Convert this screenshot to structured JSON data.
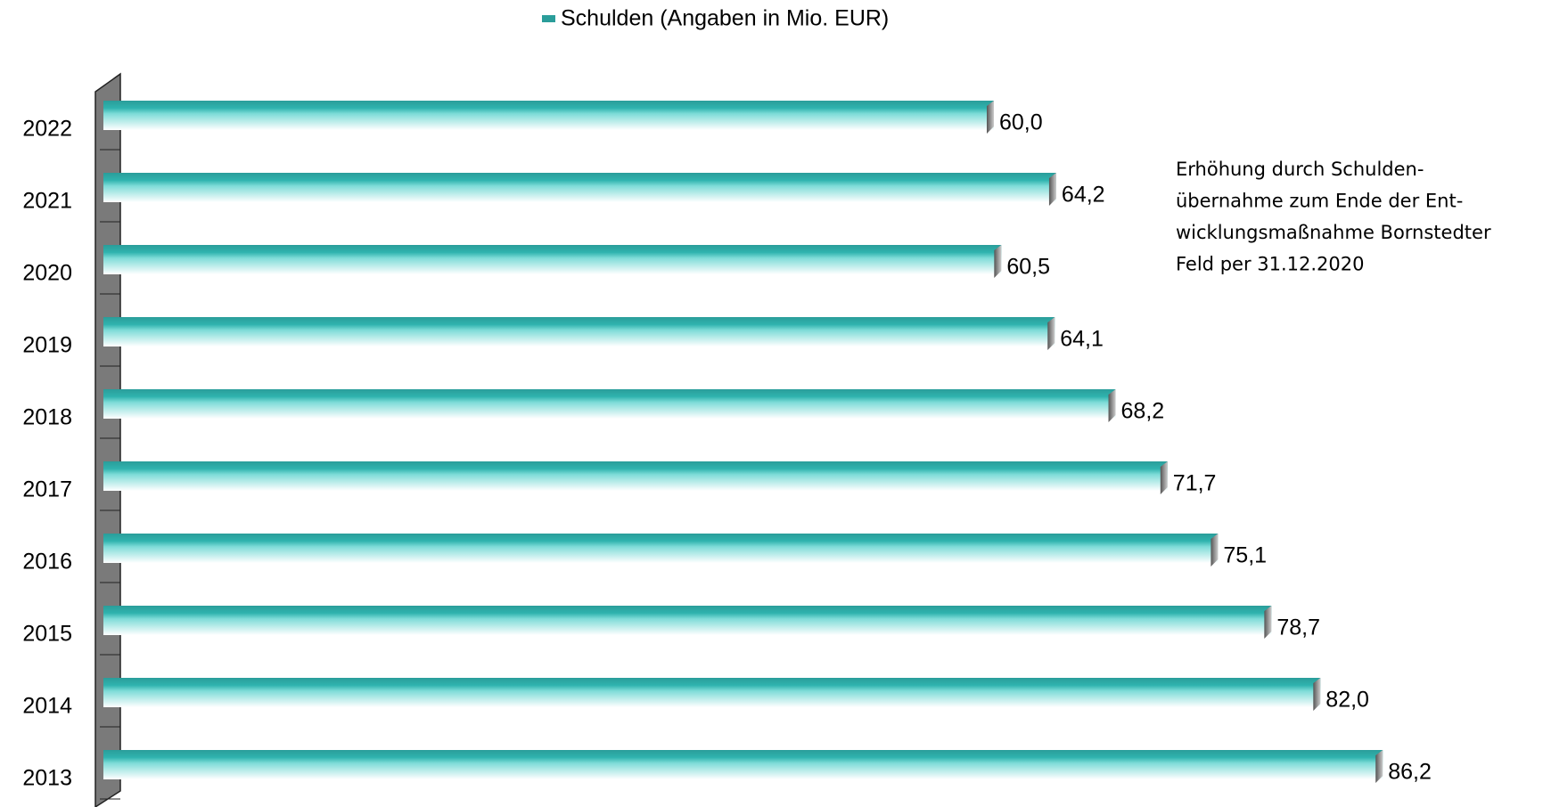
{
  "chart_data": {
    "type": "bar",
    "orientation": "horizontal",
    "categories": [
      "2022",
      "2021",
      "2020",
      "2019",
      "2018",
      "2017",
      "2016",
      "2015",
      "2014",
      "2013"
    ],
    "series": [
      {
        "name": "Schulden (Angaben in Mio. EUR)",
        "color": "#2a9d9a",
        "values": [
          60.0,
          64.2,
          60.5,
          64.1,
          68.2,
          71.7,
          75.1,
          78.7,
          82.0,
          86.2
        ],
        "value_labels": [
          "60,0",
          "64,2",
          "60,5",
          "64,1",
          "68,2",
          "71,7",
          "75,1",
          "78,7",
          "82,0",
          "86,2"
        ]
      }
    ],
    "annotation": [
      "Erhöhung  durch Schulden-",
      "übernahme zum Ende  der Ent-",
      "wicklungsmaßnahme Bornstedter",
      "Feld  per 31.12.2020"
    ],
    "legend": "top"
  }
}
